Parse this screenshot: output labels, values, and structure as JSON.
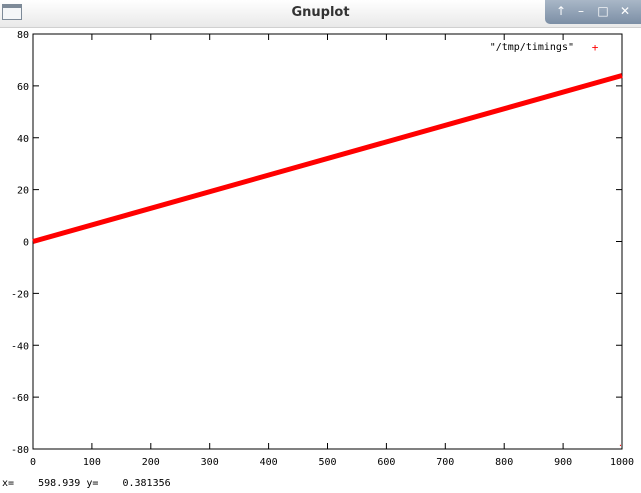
{
  "window": {
    "title": "Gnuplot",
    "buttons": [
      {
        "name": "shade-button",
        "glyph": "↑"
      },
      {
        "name": "minimize-button",
        "glyph": "–"
      },
      {
        "name": "maximize-button",
        "glyph": "□"
      },
      {
        "name": "close-button",
        "glyph": "✕"
      }
    ]
  },
  "status": {
    "x_label": "x=",
    "x_value": "598.939",
    "y_label": "y=",
    "y_value": "0.381356"
  },
  "chart_data": {
    "type": "scatter",
    "title": "",
    "xlabel": "",
    "ylabel": "",
    "xlim": [
      0,
      1000
    ],
    "ylim": [
      -80,
      80
    ],
    "xticks": [
      "0",
      "100",
      "200",
      "300",
      "400",
      "500",
      "600",
      "700",
      "800",
      "900",
      "1000"
    ],
    "yticks": [
      "80",
      "60",
      "40",
      "20",
      "0",
      "-20",
      "-40",
      "-60",
      "-80"
    ],
    "grid": false,
    "legend": "top-right",
    "series": [
      {
        "name": "\"/tmp/timings\"",
        "color": "#ff0000",
        "marker": "+",
        "x_start": 0,
        "x_end": 1000,
        "y_start": 0,
        "y_end": 64
      }
    ]
  }
}
